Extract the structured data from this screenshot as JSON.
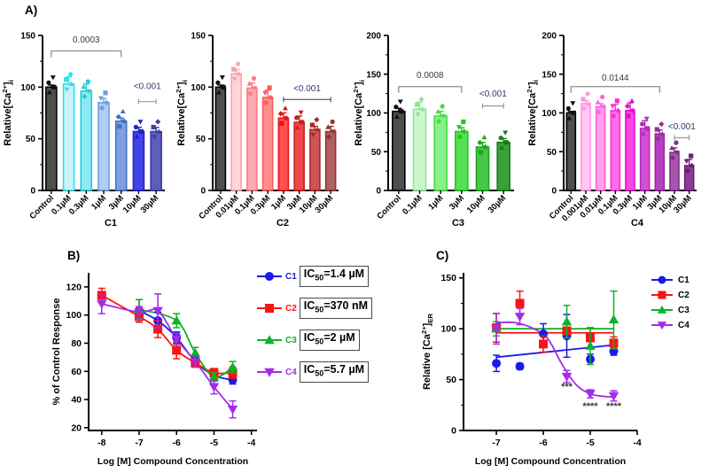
{
  "figure": {
    "panel_a_label": "A)",
    "panel_b_label": "B)",
    "panel_c_label": "C)"
  },
  "chart_data": [
    {
      "id": "c1_bars",
      "type": "bar",
      "panel": "A",
      "xlabel": "C1",
      "ylabel_parts": [
        {
          "t": "Relative[Ca"
        },
        {
          "t": "2+",
          "pos": "sup"
        },
        {
          "t": "]"
        },
        {
          "t": "i",
          "pos": "sub"
        }
      ],
      "ylim": [
        0,
        150
      ],
      "yticks": [
        0,
        50,
        100,
        150
      ],
      "categories": [
        "Control",
        "0.1µM",
        "0.3µM",
        "1µM",
        "3µM",
        "10µM",
        "30µM"
      ],
      "values": [
        100,
        103,
        96,
        85,
        67,
        57,
        57
      ],
      "errors": [
        2,
        7,
        7,
        4,
        3,
        4,
        4
      ],
      "bar_fill": [
        "#4f4f4f",
        "#c9f4f9",
        "#8deaf2",
        "#b0ccf2",
        "#7f9fe0",
        "#4343ea",
        "#5d5dba"
      ],
      "bar_edge": [
        "#000000",
        "#35dcec",
        "#21ccdd",
        "#6f9fdc",
        "#4472c4",
        "#2121cc",
        "#3d3da0"
      ],
      "annotations": [
        {
          "style": "bracket",
          "from": 0,
          "to": 4,
          "value": 135,
          "label": "0.0003",
          "label_value": 143,
          "line_color": "#8f8f8f",
          "text_color": "#3a3a3a"
        },
        {
          "style": "capline",
          "from": 5,
          "to": 6,
          "value": 86,
          "label": "<0.001",
          "label_value": 98,
          "line_color": "#9a9a9a",
          "text_color": "#2d3a66"
        }
      ]
    },
    {
      "id": "c2_bars",
      "type": "bar",
      "panel": "A",
      "xlabel": "C2",
      "ylabel_parts": [
        {
          "t": "Relative[Ca"
        },
        {
          "t": "2+",
          "pos": "sup"
        },
        {
          "t": "]"
        },
        {
          "t": "i",
          "pos": "sub"
        }
      ],
      "ylim": [
        0,
        150
      ],
      "yticks": [
        0,
        50,
        100,
        150
      ],
      "categories": [
        "Control",
        "0.01µM",
        "0.1µM",
        "0.3µM",
        "1µM",
        "3µM",
        "10µM",
        "30µM"
      ],
      "values": [
        100,
        113,
        99,
        90,
        70,
        66,
        59,
        57
      ],
      "errors": [
        2,
        4,
        5,
        7,
        5,
        6,
        3,
        5
      ],
      "bar_fill": [
        "#4f4f4f",
        "#ffd3da",
        "#ffaab0",
        "#ff8d8d",
        "#ff5252",
        "#ef4848",
        "#cc5555",
        "#b06060"
      ],
      "bar_edge": [
        "#000000",
        "#ff9eae",
        "#ff7a82",
        "#ff5a5a",
        "#e81414",
        "#cc2020",
        "#a82828",
        "#8a3434"
      ],
      "annotations": [
        {
          "style": "capline",
          "from": 4,
          "to": 7,
          "value": 88,
          "label": "<0.001",
          "label_value": 96,
          "line_color": "#555555",
          "text_color": "#2d3a66"
        }
      ]
    },
    {
      "id": "c3_bars",
      "type": "bar",
      "panel": "A",
      "xlabel": "C3",
      "ylabel_parts": [
        {
          "t": "Relative[Ca"
        },
        {
          "t": "2+",
          "pos": "sup"
        },
        {
          "t": "]"
        },
        {
          "t": "i",
          "pos": "sub"
        }
      ],
      "ylim": [
        0,
        200
      ],
      "yticks": [
        0,
        50,
        100,
        150,
        200
      ],
      "categories": [
        "Control",
        "0.1µM",
        "1µM",
        "3µM",
        "10µM",
        "30µM"
      ],
      "values": [
        102,
        105,
        96,
        76,
        56,
        62
      ],
      "errors": [
        4,
        9,
        6,
        5,
        6,
        5
      ],
      "bar_fill": [
        "#4f4f4f",
        "#ccf7cc",
        "#8aee8a",
        "#55e055",
        "#47c647",
        "#3aa03a"
      ],
      "bar_edge": [
        "#000000",
        "#8ee88e",
        "#44dd44",
        "#22c522",
        "#1ea51e",
        "#177c17"
      ],
      "annotations": [
        {
          "style": "bracket",
          "from": 0,
          "to": 3,
          "value": 134,
          "label": "0.0008",
          "label_value": 145,
          "line_color": "#8f8f8f",
          "text_color": "#3a3a3a"
        },
        {
          "style": "capline",
          "from": 4,
          "to": 5,
          "value": 109,
          "label": "<0.001",
          "label_value": 121,
          "line_color": "#9a9a9a",
          "text_color": "#2d3a66"
        }
      ]
    },
    {
      "id": "c4_bars",
      "type": "bar",
      "panel": "A",
      "xlabel": "C4",
      "ylabel_parts": [
        {
          "t": "Relative[Ca"
        },
        {
          "t": "2+",
          "pos": "sup"
        },
        {
          "t": "]"
        },
        {
          "t": "i",
          "pos": "sub"
        }
      ],
      "ylim": [
        0,
        200
      ],
      "yticks": [
        0,
        50,
        100,
        150,
        200
      ],
      "categories": [
        "Control",
        "0.001µM",
        "0.01µM",
        "0.1µM",
        "0.3µM",
        "1µM",
        "3µM",
        "10µM",
        "30µM"
      ],
      "values": [
        100,
        112,
        108,
        103,
        103,
        80,
        73,
        49,
        32
      ],
      "errors": [
        2,
        4,
        4,
        8,
        10,
        10,
        5,
        6,
        8
      ],
      "bar_fill": [
        "#4f4f4f",
        "#ffc9f2",
        "#ff9fec",
        "#ff6ce9",
        "#f846e3",
        "#d44fd8",
        "#b83fc2",
        "#a855b0",
        "#91399c"
      ],
      "bar_edge": [
        "#000000",
        "#ff94e4",
        "#ff62dd",
        "#f832d8",
        "#e012cc",
        "#b32cb8",
        "#962c9e",
        "#7c2f88",
        "#66226e"
      ],
      "annotations": [
        {
          "style": "bracket",
          "from": 0,
          "to": 6,
          "value": 134,
          "label": "0.0144",
          "label_value": 142,
          "line_color": "#8f8f8f",
          "text_color": "#3a3a3a"
        },
        {
          "style": "capline",
          "from": 7,
          "to": 8,
          "value": 68,
          "label": "<0.001",
          "label_value": 79,
          "line_color": "#9a9a9a",
          "text_color": "#2d3a66"
        }
      ]
    },
    {
      "id": "b_dose_response",
      "type": "line",
      "panel": "B",
      "xlabel": "Log [M] Compound Concentration",
      "ylabel_parts": [
        {
          "t": "% of Control Response"
        }
      ],
      "xlim": [
        -8.35,
        -3.85
      ],
      "ylim": [
        18,
        130
      ],
      "xticks": [
        -8,
        -7,
        -6,
        -5,
        -4
      ],
      "yticks": [
        20,
        40,
        60,
        80,
        100,
        120
      ],
      "series": [
        {
          "name": "C1",
          "color": "#1a1ae8",
          "marker": "circle",
          "x": [
            -7,
            -6.5,
            -6,
            -5.5,
            -5,
            -4.5
          ],
          "y": [
            103,
            96,
            84,
            67,
            57,
            54
          ],
          "err": [
            8,
            6,
            4,
            3,
            3,
            3
          ],
          "ic50": {
            "prefix": "IC",
            "sub": "50",
            "rest": "=1.4 µM"
          }
        },
        {
          "name": "C2",
          "color": "#fb1212",
          "marker": "square",
          "x": [
            -8,
            -7,
            -6.5,
            -6,
            -5.5,
            -5,
            -4.5
          ],
          "y": [
            114,
            99,
            90,
            75,
            66,
            59,
            59
          ],
          "err": [
            5,
            4,
            6,
            6,
            3,
            3,
            4
          ],
          "ic50": {
            "prefix": "IC",
            "sub": "50",
            "rest": "=370 nM"
          }
        },
        {
          "name": "C3",
          "color": "#0db32a",
          "marker": "triangle",
          "x": [
            -7,
            -6,
            -5.5,
            -5,
            -4.5
          ],
          "y": [
            104,
            96,
            73,
            56,
            63
          ],
          "err": [
            7,
            5,
            4,
            3,
            4
          ],
          "ic50": {
            "prefix": "IC",
            "sub": "50",
            "rest": "=2 µM"
          }
        },
        {
          "name": "C4",
          "color": "#a32ce8",
          "marker": "triangle-down",
          "x": [
            -8,
            -7,
            -6.5,
            -6,
            -5.5,
            -5,
            -4.5
          ],
          "y": [
            108,
            102,
            103,
            83,
            67,
            49,
            33
          ],
          "err": [
            7,
            4,
            12,
            4,
            4,
            5,
            6
          ],
          "ic50": {
            "prefix": "IC",
            "sub": "50",
            "rest": "=5.7 µM"
          }
        }
      ],
      "annotations": []
    },
    {
      "id": "c_er_calcium",
      "type": "line",
      "panel": "C",
      "xlabel": "Log [M] Compound Concentration",
      "ylabel_parts": [
        {
          "t": "Relative [Ca"
        },
        {
          "t": "2+",
          "pos": "sup"
        },
        {
          "t": "]"
        },
        {
          "t": "ER",
          "pos": "sub"
        }
      ],
      "xlim": [
        -7.7,
        -4.0
      ],
      "ylim": [
        0,
        155
      ],
      "xticks": [
        -7,
        -6,
        -5,
        -4
      ],
      "yticks": [
        0,
        50,
        100,
        150
      ],
      "yminor": [
        25,
        75,
        125
      ],
      "series": [
        {
          "name": "C1",
          "color": "#1a1ae8",
          "marker": "circle",
          "x": [
            -7,
            -6.5,
            -6,
            -5.5,
            -5,
            -4.5
          ],
          "y": [
            66,
            63,
            95,
            93,
            70,
            78
          ],
          "err": [
            8,
            3,
            10,
            21,
            5,
            4
          ],
          "fit": [
            [
              -7,
              72
            ],
            [
              -4.5,
              84
            ]
          ]
        },
        {
          "name": "C2",
          "color": "#fb1212",
          "marker": "square",
          "x": [
            -7,
            -6.5,
            -6,
            -5.5,
            -5,
            -4.5
          ],
          "y": [
            101,
            125,
            85,
            98,
            91,
            86
          ],
          "err": [
            14,
            12,
            8,
            7,
            10,
            6
          ],
          "fit": [
            [
              -7,
              96
            ],
            [
              -4.5,
              96
            ]
          ]
        },
        {
          "name": "C3",
          "color": "#0db32a",
          "marker": "triangle",
          "x": [
            -7,
            -5.5,
            -5,
            -4.5
          ],
          "y": [
            100,
            107,
            83,
            109
          ],
          "err": [
            7,
            16,
            18,
            28
          ],
          "fit": [
            [
              -7,
              100
            ],
            [
              -4.5,
              100
            ]
          ]
        },
        {
          "name": "C4",
          "color": "#a32ce8",
          "marker": "triangle-down",
          "x": [
            -7,
            -6.5,
            -5.5,
            -5,
            -4.5
          ],
          "y": [
            100,
            112,
            53,
            36,
            34
          ],
          "err": [
            15,
            8,
            6,
            4,
            5
          ],
          "fit": [
            [
              -7,
              106
            ],
            [
              -6.6,
              106
            ],
            [
              -6.2,
              100
            ],
            [
              -5.9,
              90
            ],
            [
              -5.6,
              65
            ],
            [
              -5.3,
              45
            ],
            [
              -5,
              36
            ],
            [
              -4.7,
              33.5
            ],
            [
              -4.5,
              33
            ]
          ]
        }
      ],
      "annotations": [
        {
          "label": "***",
          "x": -5.5,
          "y": 40,
          "color": "#3a3a3a"
        },
        {
          "label": "****",
          "x": -5,
          "y": 21,
          "color": "#3a3a3a"
        },
        {
          "label": "****",
          "x": -4.5,
          "y": 21,
          "color": "#3a3a3a"
        }
      ]
    }
  ]
}
